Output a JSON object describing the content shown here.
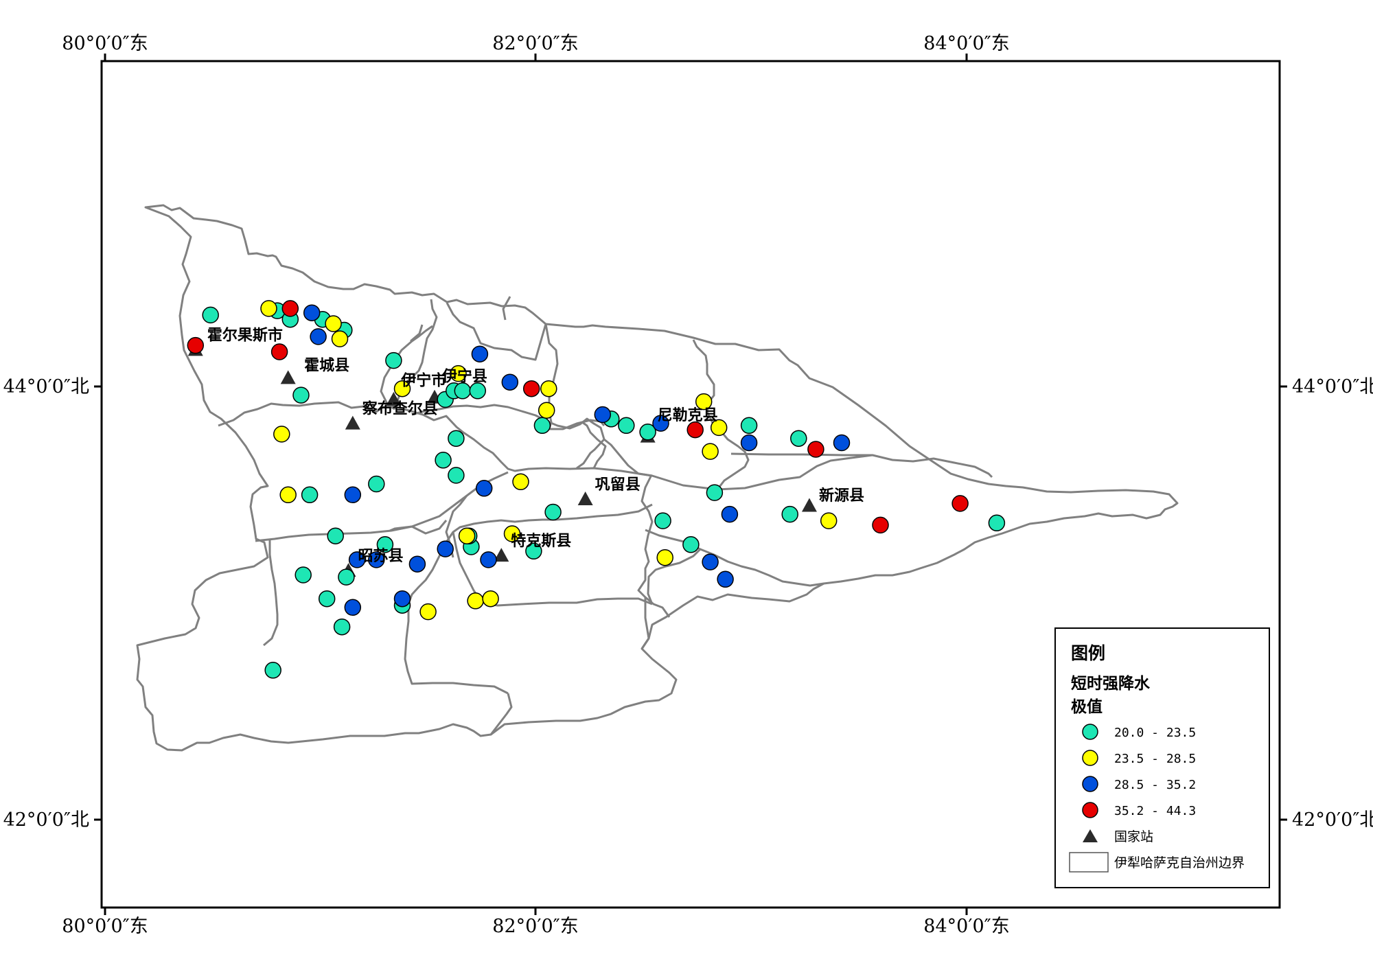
{
  "axes": {
    "x_ticks": [
      {
        "value": 80,
        "label": "80°0′0″东"
      },
      {
        "value": 82,
        "label": "82°0′0″东"
      },
      {
        "value": 84,
        "label": "84°0′0″东"
      }
    ],
    "y_ticks": [
      {
        "value": 44,
        "label": "44°0′0″北"
      },
      {
        "value": 42,
        "label": "42°0′0″北"
      }
    ]
  },
  "counties": [
    {
      "name": "霍尔果斯市",
      "lon": 80.43,
      "lat": 44.17
    },
    {
      "name": "霍城县",
      "lon": 80.88,
      "lat": 44.03
    },
    {
      "name": "伊宁市",
      "lon": 81.33,
      "lat": 43.96
    },
    {
      "name": "伊宁县",
      "lon": 81.52,
      "lat": 43.98
    },
    {
      "name": "察布查尔县",
      "lon": 81.15,
      "lat": 43.83
    },
    {
      "name": "巩留县",
      "lon": 82.23,
      "lat": 43.48
    },
    {
      "name": "尼勒克县",
      "lon": 82.52,
      "lat": 43.8
    },
    {
      "name": "新源县",
      "lon": 83.27,
      "lat": 43.43
    },
    {
      "name": "特克斯县",
      "lon": 81.84,
      "lat": 43.22
    },
    {
      "name": "昭苏县",
      "lon": 81.13,
      "lat": 43.15
    }
  ],
  "national_stations": [
    {
      "lon": 80.42,
      "lat": 44.17
    },
    {
      "lon": 80.85,
      "lat": 44.04
    },
    {
      "lon": 81.15,
      "lat": 43.83
    },
    {
      "lon": 81.34,
      "lat": 43.94
    },
    {
      "lon": 81.53,
      "lat": 43.95
    },
    {
      "lon": 82.23,
      "lat": 43.48
    },
    {
      "lon": 82.52,
      "lat": 43.77
    },
    {
      "lon": 83.27,
      "lat": 43.45
    },
    {
      "lon": 81.84,
      "lat": 43.22
    },
    {
      "lon": 81.13,
      "lat": 43.15
    }
  ],
  "stations": {
    "c1": [
      [
        80.49,
        44.33
      ],
      [
        80.8,
        44.35
      ],
      [
        80.86,
        44.31
      ],
      [
        81.01,
        44.31
      ],
      [
        81.11,
        44.26
      ],
      [
        80.91,
        43.96
      ],
      [
        81.34,
        44.12
      ],
      [
        81.58,
        43.94
      ],
      [
        81.62,
        43.98
      ],
      [
        81.66,
        43.98
      ],
      [
        81.73,
        43.98
      ],
      [
        81.63,
        43.76
      ],
      [
        81.57,
        43.66
      ],
      [
        81.63,
        43.59
      ],
      [
        81.26,
        43.55
      ],
      [
        80.95,
        43.5
      ],
      [
        82.03,
        43.82
      ],
      [
        82.08,
        43.42
      ],
      [
        82.35,
        43.85
      ],
      [
        82.42,
        43.82
      ],
      [
        82.52,
        43.79
      ],
      [
        82.83,
        43.51
      ],
      [
        82.99,
        43.82
      ],
      [
        83.22,
        43.76
      ],
      [
        83.18,
        43.41
      ],
      [
        84.14,
        43.37
      ],
      [
        82.59,
        43.38
      ],
      [
        82.72,
        43.27
      ],
      [
        81.99,
        43.24
      ],
      [
        81.7,
        43.26
      ],
      [
        81.69,
        43.31
      ],
      [
        81.3,
        43.27
      ],
      [
        81.07,
        43.31
      ],
      [
        81.12,
        43.12
      ],
      [
        80.92,
        43.13
      ],
      [
        81.03,
        43.02
      ],
      [
        81.38,
        42.99
      ],
      [
        81.1,
        42.89
      ],
      [
        80.78,
        42.69
      ]
    ],
    "c2": [
      [
        80.76,
        44.36
      ],
      [
        81.06,
        44.29
      ],
      [
        81.09,
        44.22
      ],
      [
        81.38,
        43.99
      ],
      [
        81.64,
        44.06
      ],
      [
        82.06,
        43.99
      ],
      [
        82.05,
        43.89
      ],
      [
        82.78,
        43.93
      ],
      [
        82.85,
        43.81
      ],
      [
        82.81,
        43.7
      ],
      [
        80.82,
        43.78
      ],
      [
        80.85,
        43.5
      ],
      [
        81.93,
        43.56
      ],
      [
        81.68,
        43.31
      ],
      [
        81.89,
        43.32
      ],
      [
        82.6,
        43.21
      ],
      [
        83.36,
        43.38
      ],
      [
        81.72,
        43.01
      ],
      [
        81.79,
        43.02
      ],
      [
        81.5,
        42.96
      ]
    ],
    "c3": [
      [
        80.96,
        44.34
      ],
      [
        80.99,
        44.23
      ],
      [
        81.74,
        44.15
      ],
      [
        81.88,
        44.02
      ],
      [
        82.31,
        43.87
      ],
      [
        82.58,
        43.83
      ],
      [
        82.99,
        43.74
      ],
      [
        83.42,
        43.74
      ],
      [
        81.76,
        43.53
      ],
      [
        81.15,
        43.5
      ],
      [
        82.9,
        43.41
      ],
      [
        81.58,
        43.25
      ],
      [
        81.78,
        43.2
      ],
      [
        81.17,
        43.2
      ],
      [
        81.26,
        43.2
      ],
      [
        81.45,
        43.18
      ],
      [
        82.81,
        43.19
      ],
      [
        82.88,
        43.11
      ],
      [
        81.38,
        43.02
      ],
      [
        81.15,
        42.98
      ]
    ],
    "c4": [
      [
        80.86,
        44.36
      ],
      [
        80.42,
        44.19
      ],
      [
        80.81,
        44.16
      ],
      [
        81.98,
        43.99
      ],
      [
        82.74,
        43.8
      ],
      [
        83.3,
        43.71
      ],
      [
        83.97,
        43.46
      ],
      [
        83.6,
        43.36
      ]
    ]
  },
  "colors": {
    "c1": "#1EE6B4",
    "c2": "#FFFF00",
    "c3": "#0050DC",
    "c4": "#E60000",
    "boundary": "#808080",
    "station": "#2b2b2b"
  },
  "legend": {
    "title": "图例",
    "subtitle1": "短时强降水",
    "subtitle2": "极值",
    "items": [
      {
        "key": "c1",
        "label": "20.0 - 23.5"
      },
      {
        "key": "c2",
        "label": "23.5 - 28.5"
      },
      {
        "key": "c3",
        "label": "28.5 - 35.2"
      },
      {
        "key": "c4",
        "label": "35.2 - 44.3"
      }
    ],
    "station_label": "国家站",
    "boundary_label": "伊犁哈萨克自治州边界"
  }
}
